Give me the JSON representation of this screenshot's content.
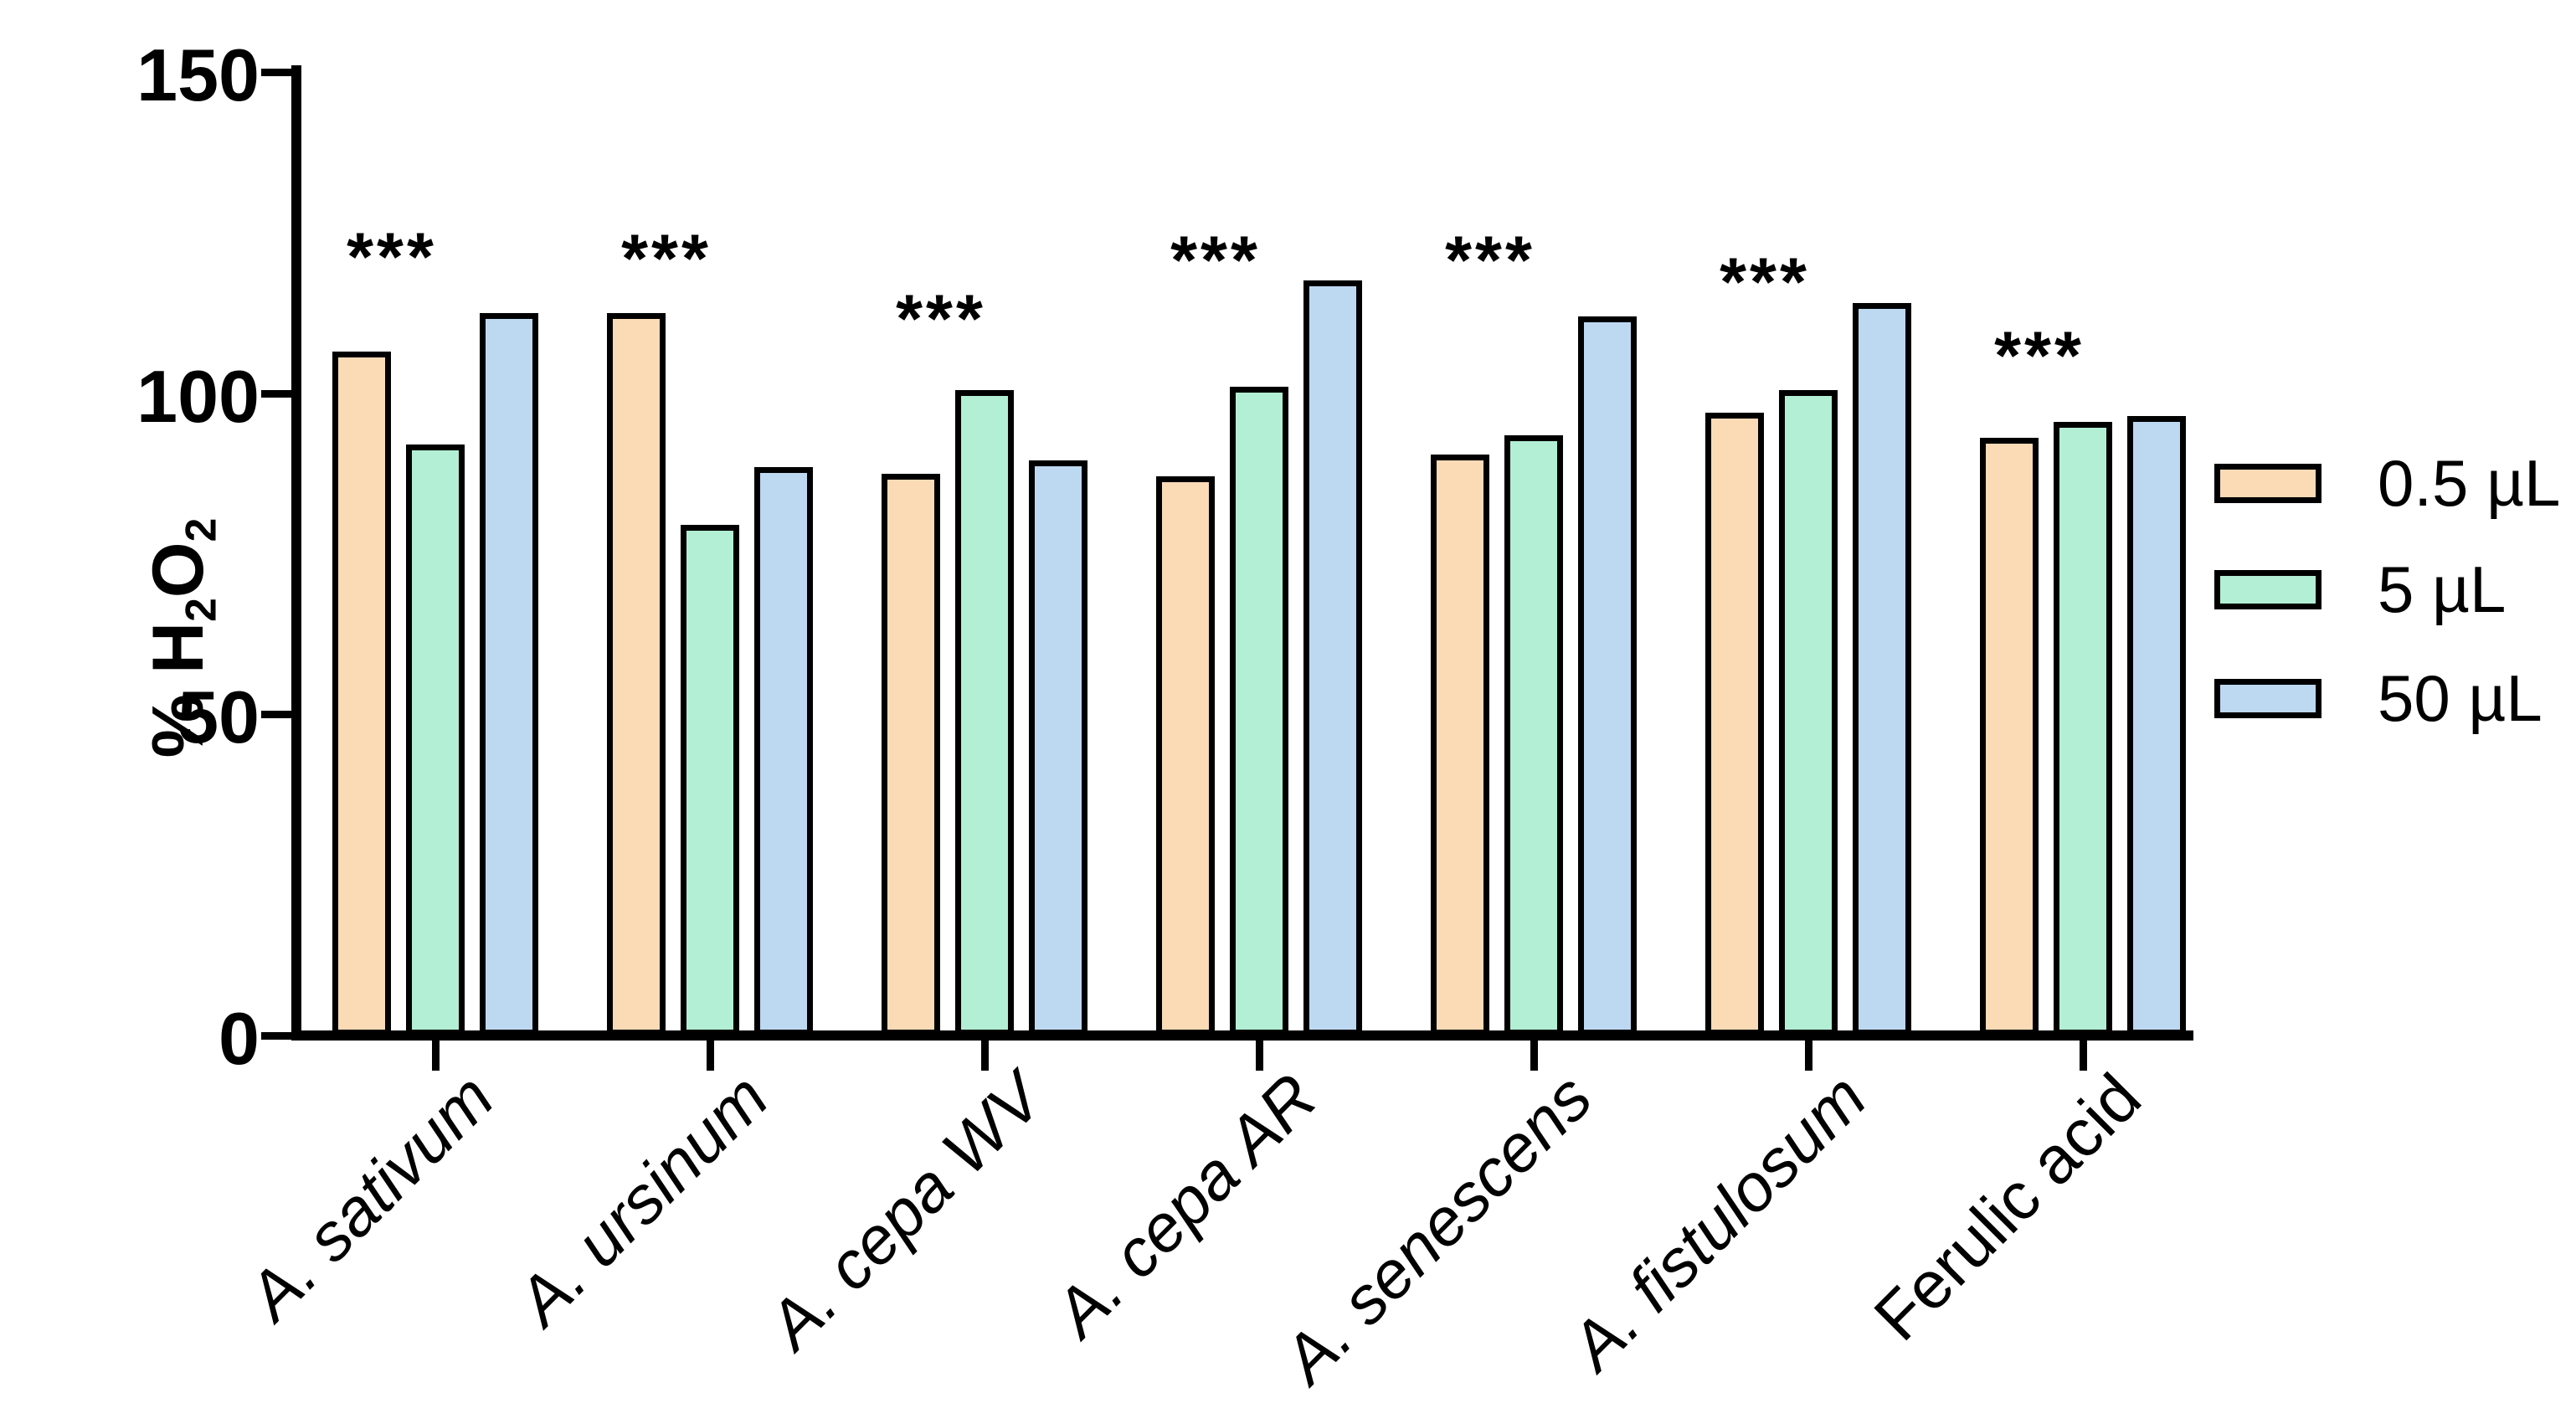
{
  "chart_data": {
    "type": "bar",
    "title": "",
    "ylabel_plain": "% H2O2",
    "ylabel_parts": {
      "p0": "% H",
      "s0": "2",
      "p1": "O",
      "s1": "2"
    },
    "yticks": [
      0,
      50,
      100,
      150
    ],
    "ylim": [
      0,
      150
    ],
    "grid": false,
    "legend_position": "right",
    "axis_color": "#000000",
    "bar_border_color": "#000000",
    "categories": [
      {
        "label": "A. sativum",
        "italic": true,
        "sig": "***"
      },
      {
        "label": "A. ursinum",
        "italic": true,
        "sig": "***"
      },
      {
        "label": "A. cepa WV",
        "italic": true,
        "sig": "***"
      },
      {
        "label": "A. cepa AR",
        "italic": true,
        "sig": "***"
      },
      {
        "label": "A. senescens",
        "italic": true,
        "sig": "***"
      },
      {
        "label": "A. fistulosum",
        "italic": true,
        "sig": "***"
      },
      {
        "label": "Ferulic acid",
        "italic": false,
        "sig": "***"
      }
    ],
    "series": [
      {
        "name": "0.5 µL",
        "color": "#FBDBB6",
        "values": [
          106.5,
          112.5,
          87.5,
          87.0,
          90.5,
          97.0,
          93.0
        ]
      },
      {
        "name": "5 µL",
        "color": "#B2EFD4",
        "values": [
          92.0,
          79.5,
          100.5,
          101.0,
          93.5,
          100.5,
          95.5
        ]
      },
      {
        "name": "50 µL",
        "color": "#BDD8F1",
        "values": [
          112.5,
          88.5,
          89.5,
          117.5,
          112.0,
          114.0,
          96.5
        ]
      }
    ]
  }
}
